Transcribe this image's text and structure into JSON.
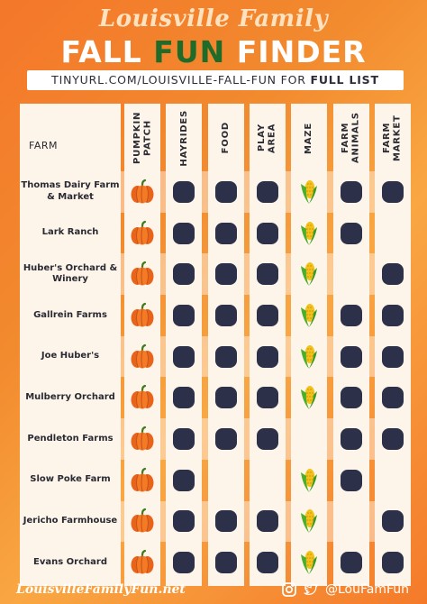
{
  "header": {
    "title": "Louisville Family",
    "main_part1": "FALL ",
    "main_highlight": "FUN",
    "main_part2": " FINDER",
    "url_text": "TINYURL.COM/LOUISVILLE-FALL-FUN FOR ",
    "url_bold": "FULL LIST"
  },
  "table": {
    "farm_header": "FARM",
    "columns": [
      "PUMPKIN PATCH",
      "HAYRIDES",
      "FOOD",
      "PLAY AREA",
      "MAZE",
      "FARM ANIMALS",
      "FARM MARKET"
    ],
    "rows": [
      {
        "name": "Thomas Dairy Farm & Market",
        "features": [
          true,
          true,
          true,
          true,
          true,
          true,
          true
        ]
      },
      {
        "name": "Lark Ranch",
        "features": [
          true,
          true,
          true,
          true,
          true,
          true,
          false
        ]
      },
      {
        "name": "Huber's Orchard & Winery",
        "features": [
          true,
          true,
          true,
          true,
          true,
          false,
          true
        ]
      },
      {
        "name": "Gallrein Farms",
        "features": [
          true,
          true,
          true,
          true,
          true,
          true,
          true
        ]
      },
      {
        "name": "Joe Huber's",
        "features": [
          true,
          true,
          true,
          true,
          true,
          true,
          true
        ]
      },
      {
        "name": "Mulberry Orchard",
        "features": [
          true,
          true,
          true,
          true,
          true,
          true,
          true
        ]
      },
      {
        "name": "Pendleton Farms",
        "features": [
          true,
          true,
          true,
          true,
          false,
          true,
          true
        ]
      },
      {
        "name": "Slow Poke Farm",
        "features": [
          true,
          true,
          false,
          false,
          true,
          true,
          false
        ]
      },
      {
        "name": "Jericho Farmhouse",
        "features": [
          true,
          true,
          true,
          true,
          true,
          false,
          true
        ]
      },
      {
        "name": "Evans Orchard",
        "features": [
          true,
          true,
          true,
          true,
          true,
          true,
          true
        ]
      }
    ]
  },
  "footer": {
    "site": "LouisvilleFamilyFun.net",
    "handle": "@LouFamFun",
    "icons": [
      "instagram-icon",
      "twitter-icon"
    ]
  },
  "colors": {
    "background": "#f4772a",
    "dot": "#2c3149",
    "highlight": "#1f6b2a"
  }
}
